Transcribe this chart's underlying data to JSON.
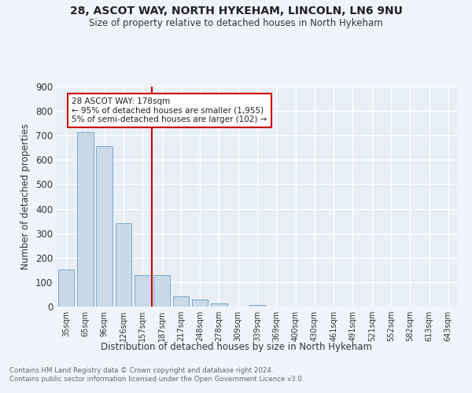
{
  "title_line1": "28, ASCOT WAY, NORTH HYKEHAM, LINCOLN, LN6 9NU",
  "title_line2": "Size of property relative to detached houses in North Hykeham",
  "xlabel": "Distribution of detached houses by size in North Hykeham",
  "ylabel": "Number of detached properties",
  "footnote": "Contains HM Land Registry data © Crown copyright and database right 2024.\nContains public sector information licensed under the Open Government Licence v3.0.",
  "bar_labels": [
    "35sqm",
    "65sqm",
    "96sqm",
    "126sqm",
    "157sqm",
    "187sqm",
    "217sqm",
    "248sqm",
    "278sqm",
    "309sqm",
    "339sqm",
    "369sqm",
    "400sqm",
    "430sqm",
    "461sqm",
    "491sqm",
    "521sqm",
    "552sqm",
    "582sqm",
    "613sqm",
    "643sqm"
  ],
  "bar_values": [
    150,
    715,
    655,
    340,
    130,
    130,
    42,
    30,
    12,
    0,
    8,
    0,
    0,
    0,
    0,
    0,
    0,
    0,
    0,
    0,
    0
  ],
  "bar_color": "#c9d9e8",
  "bar_edgecolor": "#7aaac8",
  "fig_facecolor": "#f0f4fa",
  "ax_facecolor": "#e8eef6",
  "grid_color": "#ffffff",
  "vline_color": "#cc0000",
  "annotation_text": "28 ASCOT WAY: 178sqm\n← 95% of detached houses are smaller (1,955)\n5% of semi-detached houses are larger (102) →",
  "annotation_box_color": "#ffffff",
  "annotation_box_edgecolor": "#cc0000",
  "ylim": [
    0,
    900
  ],
  "yticks": [
    0,
    100,
    200,
    300,
    400,
    500,
    600,
    700,
    800,
    900
  ],
  "footnote_color": "#666666"
}
